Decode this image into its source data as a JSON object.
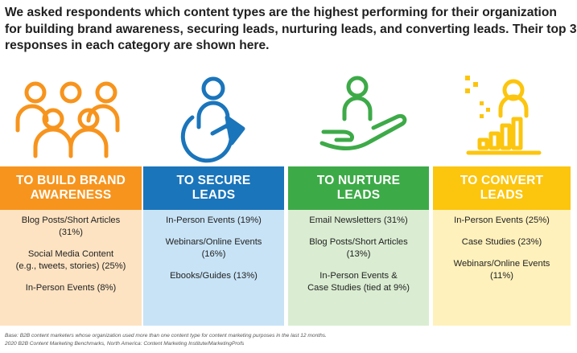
{
  "intro": [
    "We asked respondents which content types are the highest performing for their organization",
    "for building brand awareness, securing leads, nurturing leads, and converting leads. Their top 3",
    "responses in each category are shown here."
  ],
  "colors": {
    "orange": "#f7941d",
    "blue": "#1a75bb",
    "green": "#3daa48",
    "yellow": "#fcc50e",
    "orange_light": "#fde3c2",
    "blue_light": "#c8e3f6",
    "green_light": "#daedd2",
    "yellow_light": "#fff1bc"
  },
  "chart_data": {
    "type": "table",
    "columns": [
      {
        "header_lines": [
          "TO BUILD BRAND",
          "AWARENESS"
        ],
        "icon": "group-of-people-icon",
        "items": [
          {
            "label": "Blog Posts/Short Articles",
            "value": "(31%)",
            "lines": [
              "Blog Posts/Short Articles",
              "(31%)"
            ]
          },
          {
            "label": "Social Media Content (e.g., tweets, stories)",
            "value": "(25%)",
            "lines": [
              "Social Media Content",
              "(e.g., tweets, stories) (25%)"
            ]
          },
          {
            "label": "In-Person Events",
            "value": "(8%)",
            "lines": [
              "In-Person Events (8%)"
            ]
          }
        ]
      },
      {
        "header_lines": [
          "TO SECURE",
          "LEADS"
        ],
        "icon": "person-with-arrow-icon",
        "items": [
          {
            "label": "In-Person Events",
            "value": "(19%)",
            "lines": [
              "In-Person Events (19%)"
            ]
          },
          {
            "label": "Webinars/Online Events",
            "value": "(16%)",
            "lines": [
              "Webinars/Online Events",
              "(16%)"
            ]
          },
          {
            "label": "Ebooks/Guides",
            "value": "(13%)",
            "lines": [
              "Ebooks/Guides (13%)"
            ]
          }
        ]
      },
      {
        "header_lines": [
          "TO NURTURE",
          "LEADS"
        ],
        "icon": "person-on-hand-icon",
        "items": [
          {
            "label": "Email Newsletters",
            "value": "(31%)",
            "lines": [
              "Email Newsletters (31%)"
            ]
          },
          {
            "label": "Blog Posts/Short Articles",
            "value": "(13%)",
            "lines": [
              "Blog Posts/Short Articles",
              "(13%)"
            ]
          },
          {
            "label": "In-Person Events & Case Studies",
            "value": "(tied at 9%)",
            "lines": [
              "In-Person Events &",
              "Case Studies (tied at 9%)"
            ]
          }
        ]
      },
      {
        "header_lines": [
          "TO CONVERT",
          "LEADS"
        ],
        "icon": "person-with-growth-bars-icon",
        "items": [
          {
            "label": "In-Person Events",
            "value": "(25%)",
            "lines": [
              "In-Person Events (25%)"
            ]
          },
          {
            "label": "Case Studies",
            "value": "(23%)",
            "lines": [
              "Case Studies (23%)"
            ]
          },
          {
            "label": "Webinars/Online Events",
            "value": "(11%)",
            "lines": [
              "Webinars/Online Events",
              "(11%)"
            ]
          }
        ]
      }
    ]
  },
  "footnote": [
    "Base: B2B content marketers whose organization used more than one content type for content marketing purposes in the last 12 months.",
    "2020 B2B Content Marketing Benchmarks, North America: Content Marketing Institute/MarketingProfs"
  ]
}
